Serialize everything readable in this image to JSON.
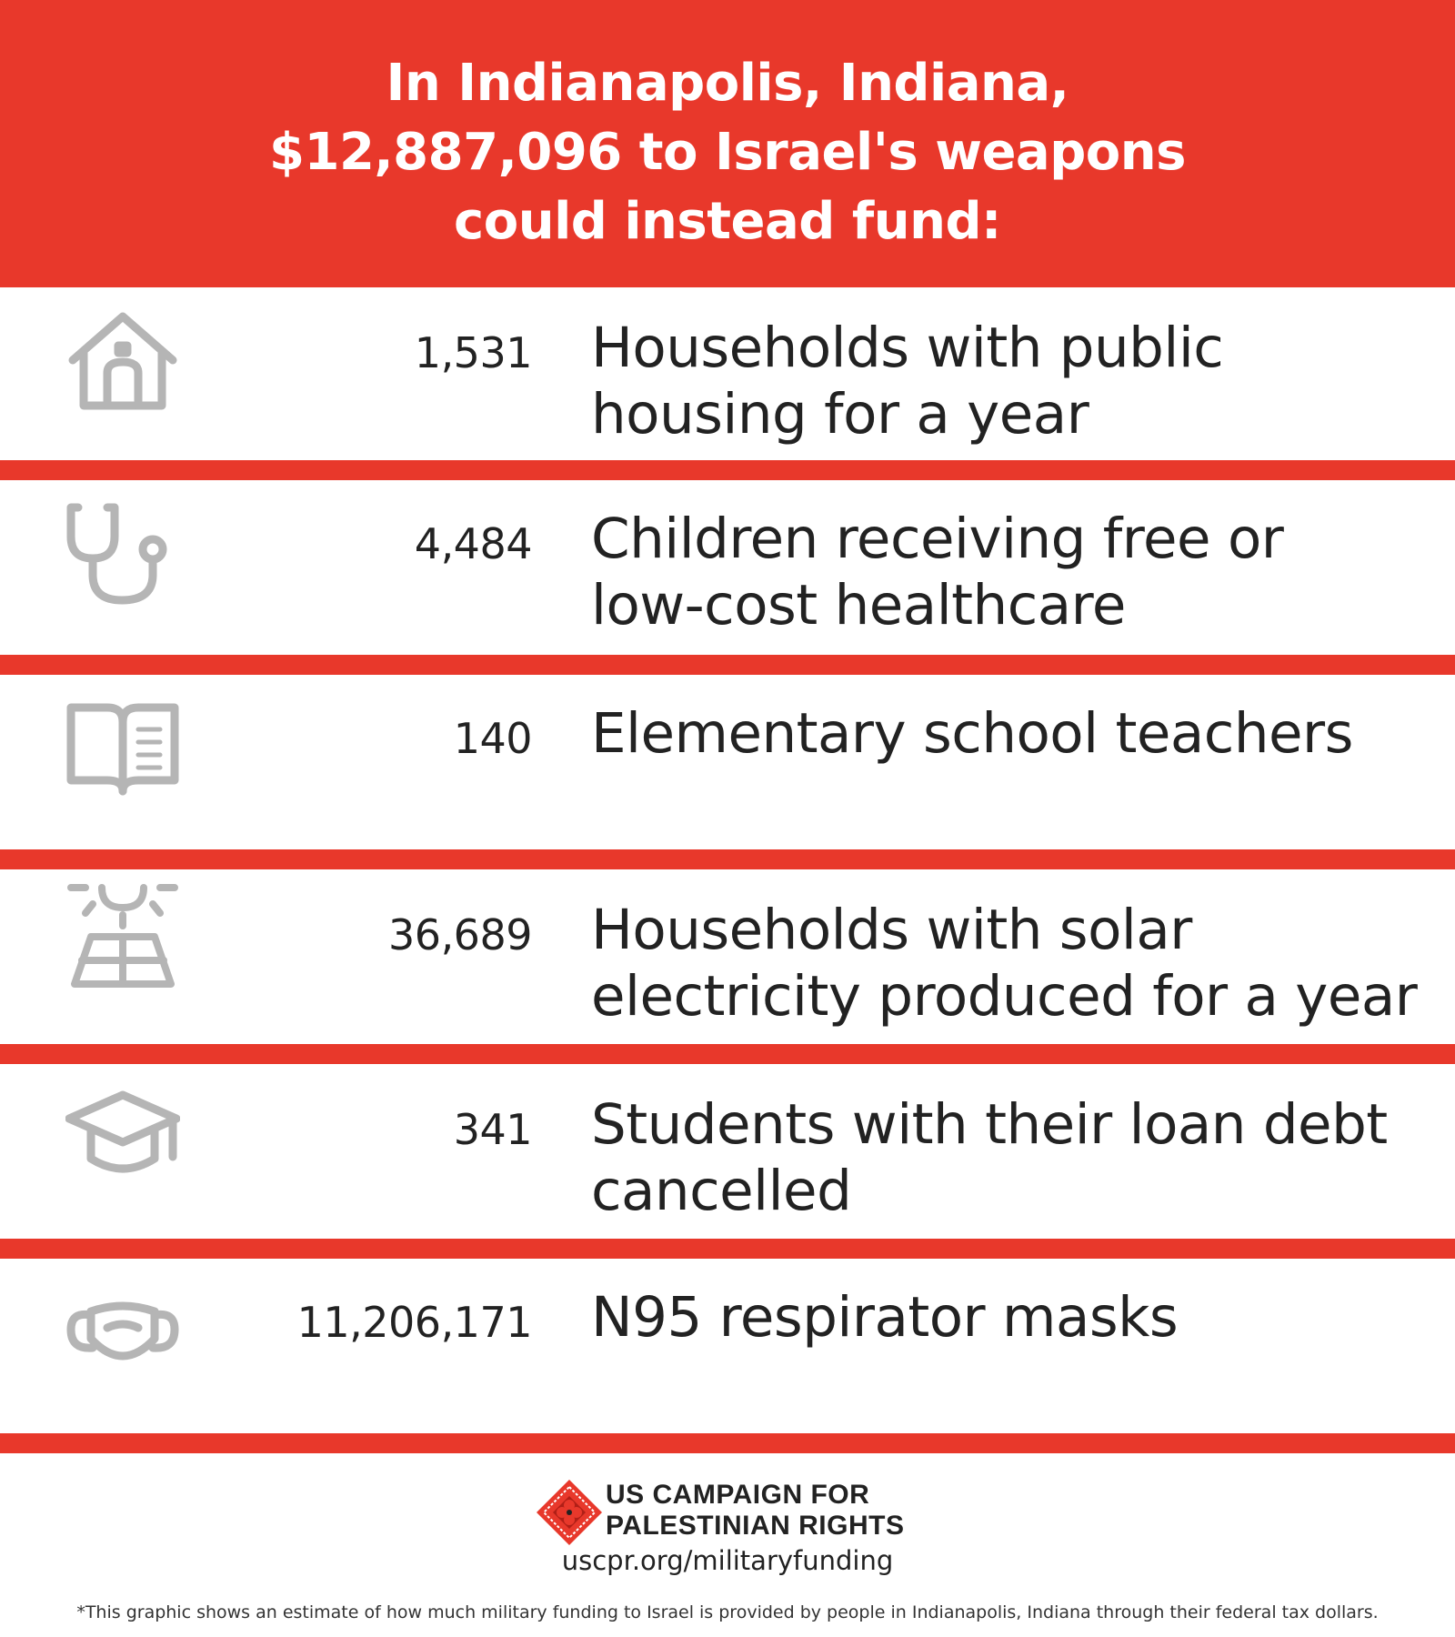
{
  "header": {
    "line1": "In Indianapolis, Indiana,",
    "line2": "$12,887,096 to Israel's weapons",
    "line3": "could instead fund:"
  },
  "items": [
    {
      "icon": "house-icon",
      "number": "1,531",
      "desc_line1": "Households with public",
      "desc_line2": "housing for a year"
    },
    {
      "icon": "stethoscope-icon",
      "number": "4,484",
      "desc_line1": "Children receiving free or",
      "desc_line2": "low-cost healthcare"
    },
    {
      "icon": "book-icon",
      "number": "140",
      "desc_line1": "Elementary school teachers",
      "desc_line2": ""
    },
    {
      "icon": "solar-panel-icon",
      "number": "36,689",
      "desc_line1": "Households with solar",
      "desc_line2": "electricity produced for a year"
    },
    {
      "icon": "graduation-cap-icon",
      "number": "341",
      "desc_line1": "Students with their loan debt",
      "desc_line2": "cancelled"
    },
    {
      "icon": "face-mask-icon",
      "number": "11,206,171",
      "desc_line1": "N95 respirator masks",
      "desc_line2": ""
    }
  ],
  "footer": {
    "org_line1": "US CAMPAIGN FOR",
    "org_line2": "PALESTINIAN RIGHTS",
    "url": "uscpr.org/militaryfunding",
    "footnote": "*This graphic shows an estimate of how much military funding to Israel is provided by people in Indianapolis, Indiana through their federal tax dollars."
  },
  "colors": {
    "accent_red": "#e8382b",
    "icon_gray": "#b5b5b5",
    "text_dark": "#222222"
  }
}
